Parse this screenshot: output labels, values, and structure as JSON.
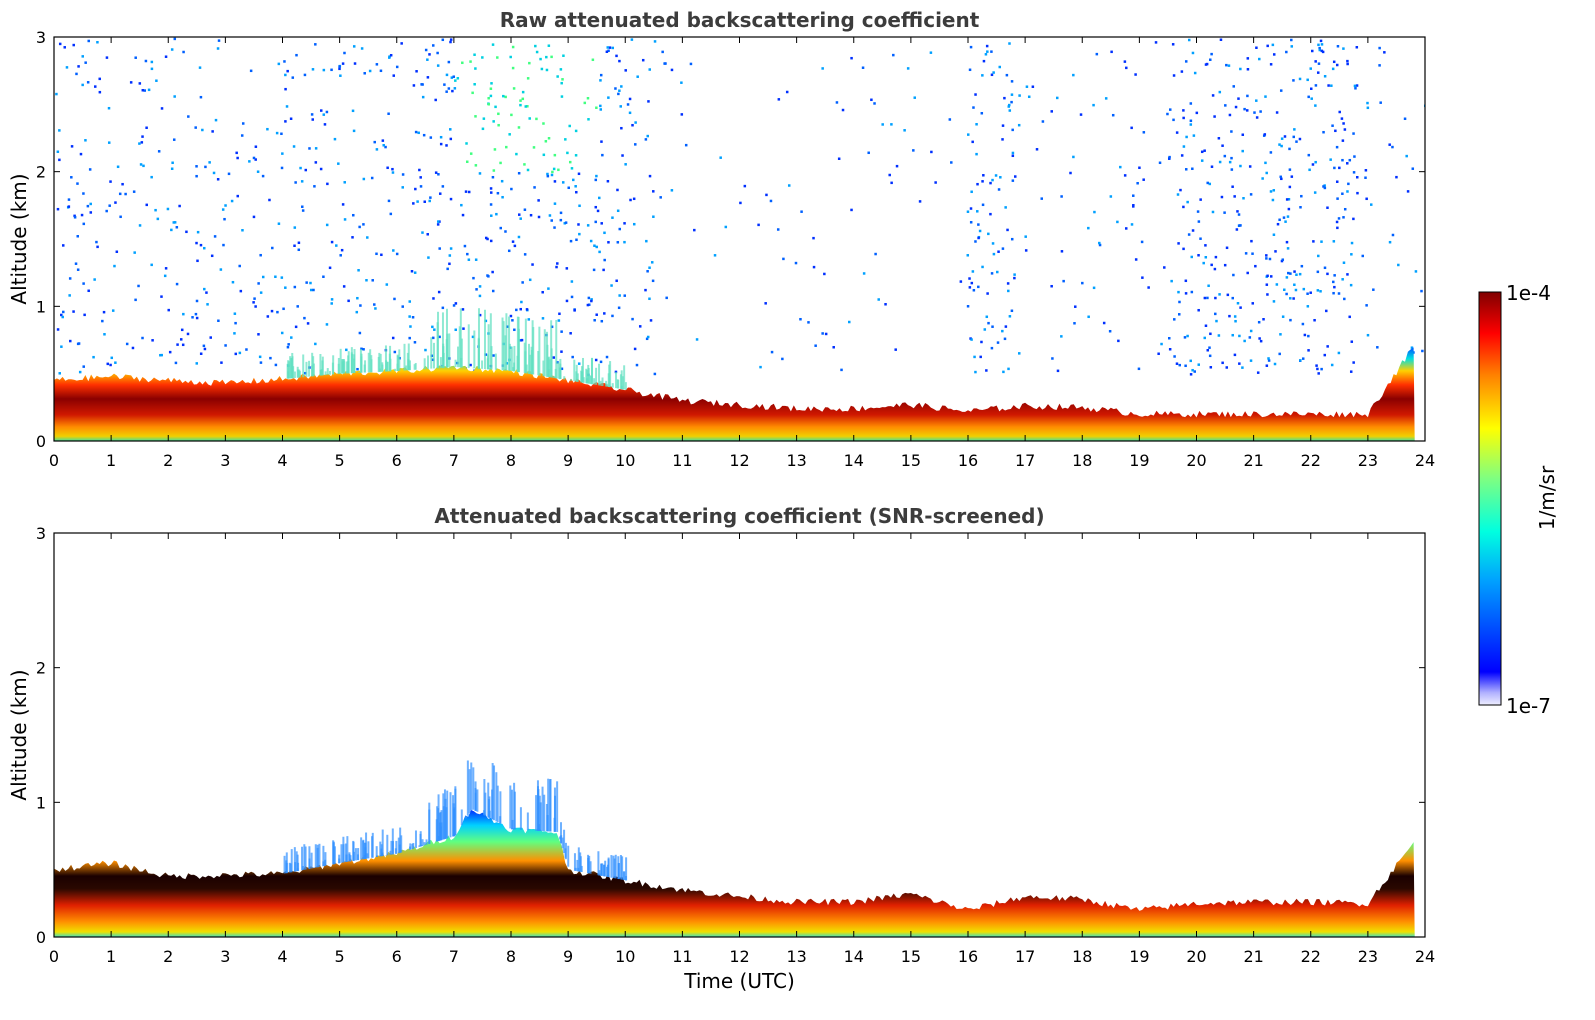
{
  "chart_data": [
    {
      "type": "heatmap",
      "title": "Raw attenuated backscattering coefficient",
      "xlabel": "",
      "ylabel": "Altitude (km)",
      "xlim": [
        0,
        24
      ],
      "ylim": [
        0,
        3
      ],
      "xticks": [
        "0",
        "1",
        "2",
        "3",
        "4",
        "5",
        "6",
        "7",
        "8",
        "9",
        "10",
        "11",
        "12",
        "13",
        "14",
        "15",
        "16",
        "17",
        "18",
        "19",
        "20",
        "21",
        "22",
        "23",
        "24"
      ],
      "yticks": [
        "0",
        "1",
        "2",
        "3"
      ],
      "layer_top_km": {
        "x": [
          0,
          1,
          2,
          3,
          4,
          5,
          6,
          7,
          8,
          9,
          10,
          11,
          12,
          13,
          14,
          15,
          16,
          17,
          18,
          19,
          20,
          21,
          22,
          23,
          23.8
        ],
        "y": [
          0.45,
          0.48,
          0.45,
          0.43,
          0.46,
          0.5,
          0.52,
          0.55,
          0.52,
          0.45,
          0.38,
          0.3,
          0.27,
          0.24,
          0.24,
          0.27,
          0.22,
          0.26,
          0.25,
          0.2,
          0.2,
          0.2,
          0.2,
          0.2,
          0.7
        ]
      }
    },
    {
      "type": "heatmap",
      "title": "Attenuated backscattering coefficient (SNR-screened)",
      "xlabel": "Time (UTC)",
      "ylabel": "Altitude (km)",
      "xlim": [
        0,
        24
      ],
      "ylim": [
        0,
        3
      ],
      "xticks": [
        "0",
        "1",
        "2",
        "3",
        "4",
        "5",
        "6",
        "7",
        "8",
        "9",
        "10",
        "11",
        "12",
        "13",
        "14",
        "15",
        "16",
        "17",
        "18",
        "19",
        "20",
        "21",
        "22",
        "23",
        "24"
      ],
      "yticks": [
        "0",
        "1",
        "2",
        "3"
      ],
      "layer_top_km": {
        "x": [
          0,
          1,
          2,
          3,
          4,
          5,
          6,
          7,
          7.3,
          8,
          8.8,
          9,
          10,
          11,
          12,
          13,
          14,
          15,
          16,
          17,
          18,
          19,
          20,
          21,
          22,
          23,
          23.8
        ],
        "y": [
          0.5,
          0.55,
          0.45,
          0.46,
          0.47,
          0.55,
          0.62,
          0.75,
          0.95,
          0.8,
          0.78,
          0.5,
          0.42,
          0.35,
          0.3,
          0.26,
          0.26,
          0.32,
          0.2,
          0.3,
          0.28,
          0.2,
          0.25,
          0.26,
          0.26,
          0.25,
          0.7
        ]
      }
    }
  ],
  "colorbar": {
    "label": "1/m/sr",
    "max_label": "1e-4",
    "min_label": "1e-7",
    "scale": "log",
    "colormap": "jet"
  },
  "colors": {
    "dark_red": "#7f0000",
    "red": "#e31a1c",
    "orange": "#ff8c00",
    "yellow": "#f0e000",
    "cyan": "#00e0e0",
    "blue": "#0040ff",
    "text": "#3c3c3c"
  }
}
